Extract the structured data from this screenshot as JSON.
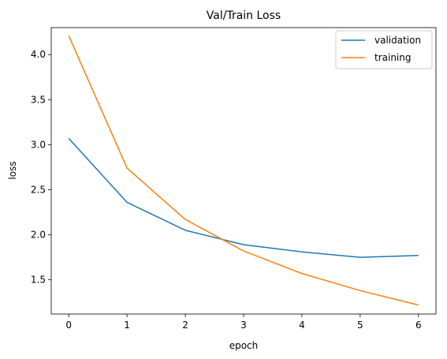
{
  "chart_data": {
    "type": "line",
    "title": "Val/Train Loss",
    "xlabel": "epoch",
    "ylabel": "loss",
    "x": [
      0,
      1,
      2,
      3,
      4,
      5,
      6
    ],
    "xlim": [
      -0.3,
      6.3
    ],
    "ylim": [
      1.12,
      4.3
    ],
    "xticks": [
      "0",
      "1",
      "2",
      "3",
      "4",
      "5",
      "6"
    ],
    "yticks": [
      "1.5",
      "2.0",
      "2.5",
      "3.0",
      "3.5",
      "4.0"
    ],
    "grid": false,
    "legend_position": "top-right",
    "series": [
      {
        "name": "validation",
        "color": "#1f77b4",
        "values": [
          3.07,
          2.36,
          2.05,
          1.89,
          1.81,
          1.75,
          1.77
        ]
      },
      {
        "name": "training",
        "color": "#ff7f0e",
        "values": [
          4.21,
          2.74,
          2.17,
          1.82,
          1.57,
          1.38,
          1.22
        ]
      }
    ]
  }
}
